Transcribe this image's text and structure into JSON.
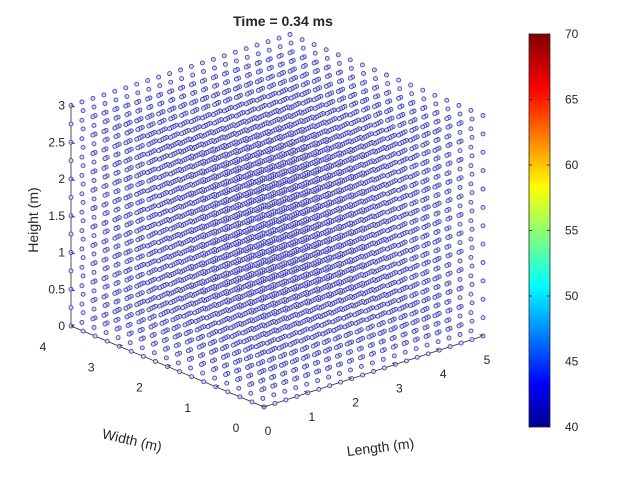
{
  "chart_data": {
    "type": "scatter3d",
    "title": "Time = 0.34 ms",
    "xlabel": "Length (m)",
    "ylabel": "Width (m)",
    "zlabel": "Height (m)",
    "x_ticks": [
      "0",
      "1",
      "2",
      "3",
      "4",
      "5"
    ],
    "y_ticks": [
      "0",
      "1",
      "2",
      "3",
      "4"
    ],
    "z_ticks": [
      "0",
      "0.5",
      "1",
      "1.5",
      "2",
      "2.5",
      "3"
    ],
    "xlim": [
      0,
      5
    ],
    "ylim": [
      0,
      4
    ],
    "zlim": [
      0,
      3
    ],
    "grid": {
      "x": {
        "min": 0,
        "max": 5,
        "count": 21
      },
      "y": {
        "min": 0,
        "max": 4,
        "count": 17
      },
      "z": {
        "min": 0,
        "max": 3,
        "count": 13
      }
    },
    "marker": "circle",
    "point_value": 40,
    "colorbar": {
      "min": 40,
      "max": 70,
      "ticks": [
        "40",
        "45",
        "50",
        "55",
        "60",
        "65",
        "70"
      ],
      "colormap": "jet"
    },
    "colors": {
      "point_stroke": "#2a2ab0",
      "point_fill": "#d6d6ee"
    }
  }
}
